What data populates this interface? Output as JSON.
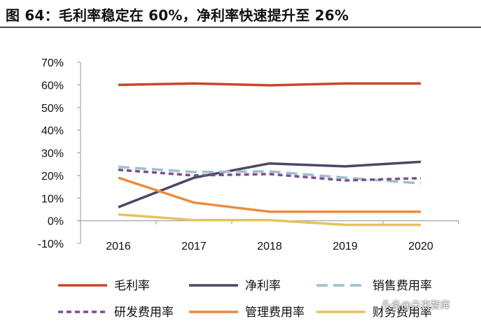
{
  "figure_title": "图 64：毛利率稳定在 60%，净利率快速提升至 26%",
  "watermark": "头条@未来智库",
  "chart_data": {
    "type": "line",
    "title": "",
    "xlabel": "",
    "ylabel": "",
    "categories": [
      "2016",
      "2017",
      "2018",
      "2019",
      "2020"
    ],
    "ylim": [
      -10,
      70
    ],
    "yticks": [
      70,
      60,
      50,
      40,
      30,
      20,
      10,
      0,
      -10
    ],
    "ytick_labels": [
      "70%",
      "60%",
      "50%",
      "40%",
      "30%",
      "20%",
      "10%",
      "0%",
      "-10%"
    ],
    "grid": false,
    "legend_position": "bottom",
    "series": [
      {
        "name": "毛利率",
        "values": [
          60,
          60.6,
          59.8,
          60.6,
          60.6
        ],
        "color": "#C9462C",
        "dash": "solid"
      },
      {
        "name": "净利率",
        "values": [
          6,
          19,
          25.3,
          24,
          26
        ],
        "color": "#4A4763",
        "dash": "solid"
      },
      {
        "name": "销售费用率",
        "values": [
          23.8,
          21.5,
          21.8,
          19,
          16.5
        ],
        "color": "#9BC2CB",
        "dash": "long-dash"
      },
      {
        "name": "研发费用率",
        "values": [
          22.5,
          20,
          20.6,
          17.8,
          18.8
        ],
        "color": "#7B4E8E",
        "dash": "short-dash"
      },
      {
        "name": "管理费用率",
        "values": [
          19,
          8,
          4,
          4,
          4
        ],
        "color": "#EE8A3D",
        "dash": "solid"
      },
      {
        "name": "财务费用率",
        "values": [
          2.8,
          0.3,
          0.3,
          -1.8,
          -1.8
        ],
        "color": "#E3C35E",
        "dash": "solid"
      }
    ]
  }
}
